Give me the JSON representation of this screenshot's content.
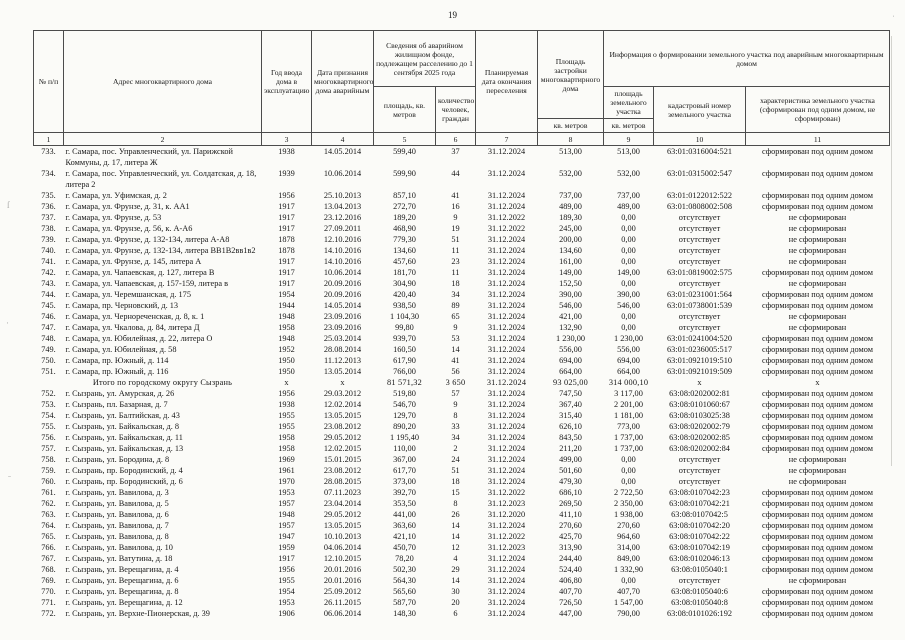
{
  "page": {
    "number": "19"
  },
  "table": {
    "headers": {
      "col1": "№ п/п",
      "col2": "Адрес многоквартирного дома",
      "col3": "Год ввода дома в эксплуатацию",
      "col4": "Дата признания многоквартирного дома аварийным",
      "col56": "Сведения об аварийном жилищном фонде, подлежащем расселению до 1 сентября 2025 года",
      "col5": "площадь, кв. метров",
      "col6": "количество человек, граждан",
      "col7": "Планируемая дата окончания переселения",
      "col8": "Площадь застройки многоквартирного дома",
      "col8sub": "кв. метров",
      "col911": "Информация о формировании земельного участка под аварийным многоквартирным домом",
      "col9": "площадь земельного участка",
      "col9sub": "кв. метров",
      "col10": "кадастровый номер земельного участка",
      "col11": "характеристика земельного участка (сформирован под одним домом, не сформирован)",
      "numbers": [
        "1",
        "2",
        "3",
        "4",
        "5",
        "6",
        "7",
        "8",
        "9",
        "10",
        "11"
      ]
    },
    "rows": [
      {
        "n": "733.",
        "address": "г. Самара, пос. Управленческий, ул. Парижской Коммуны, д. 17, литера Ж",
        "year": "1938",
        "date": "14.05.2014",
        "area": "599,40",
        "people": "37",
        "end_date": "31.12.2024",
        "footprint": "513,00",
        "land_area": "513,00",
        "cadastral": "63:01:0316004:521",
        "status": "сформирован под одним домом"
      },
      {
        "n": "734.",
        "address": "г. Самара, пос. Управленческий, ул. Солдатская, д. 18, литера 2",
        "year": "1939",
        "date": "10.06.2014",
        "area": "599,90",
        "people": "44",
        "end_date": "31.12.2024",
        "footprint": "532,00",
        "land_area": "532,00",
        "cadastral": "63:01:0315002:547",
        "status": "сформирован под одним домом"
      },
      {
        "n": "735.",
        "address": "г. Самара, ул. Уфимская, д. 2",
        "year": "1956",
        "date": "25.10.2013",
        "area": "857,10",
        "people": "41",
        "end_date": "31.12.2024",
        "footprint": "737,00",
        "land_area": "737,00",
        "cadastral": "63:01:0122012:522",
        "status": "сформирован под одним домом"
      },
      {
        "n": "736.",
        "address": "г. Самара, ул. Фрунзе, д. 31, к. АА1",
        "year": "1917",
        "date": "13.04.2013",
        "area": "272,70",
        "people": "16",
        "end_date": "31.12.2024",
        "footprint": "489,00",
        "land_area": "489,00",
        "cadastral": "63:01:0808002:508",
        "status": "сформирован под одним домом"
      },
      {
        "n": "737.",
        "address": "г. Самара, ул. Фрунзе, д. 53",
        "year": "1917",
        "date": "23.12.2016",
        "area": "189,20",
        "people": "9",
        "end_date": "31.12.2022",
        "footprint": "189,30",
        "land_area": "0,00",
        "cadastral": "отсутствует",
        "status": "не сформирован"
      },
      {
        "n": "738.",
        "address": "г. Самара, ул. Фрунзе, д. 56, к. А-А6",
        "year": "1917",
        "date": "27.09.2011",
        "area": "468,90",
        "people": "19",
        "end_date": "31.12.2022",
        "footprint": "245,00",
        "land_area": "0,00",
        "cadastral": "отсутствует",
        "status": "не сформирован"
      },
      {
        "n": "739.",
        "address": "г. Самара, ул. Фрунзе, д. 132-134, литера А-А8",
        "year": "1878",
        "date": "12.10.2016",
        "area": "779,30",
        "people": "51",
        "end_date": "31.12.2024",
        "footprint": "200,00",
        "land_area": "0,00",
        "cadastral": "отсутствует",
        "status": "не сформирован"
      },
      {
        "n": "740.",
        "address": "г. Самара, ул. Фрунзе, д. 132-134, литера ВВ1В2вв1в2",
        "year": "1878",
        "date": "14.10.2016",
        "area": "134,60",
        "people": "11",
        "end_date": "31.12.2024",
        "footprint": "134,60",
        "land_area": "0,00",
        "cadastral": "отсутствует",
        "status": "не сформирован"
      },
      {
        "n": "741.",
        "address": "г. Самара, ул. Фрунзе, д. 145, литера А",
        "year": "1917",
        "date": "14.10.2016",
        "area": "457,60",
        "people": "23",
        "end_date": "31.12.2024",
        "footprint": "161,00",
        "land_area": "0,00",
        "cadastral": "отсутствует",
        "status": "не сформирован"
      },
      {
        "n": "742.",
        "address": "г. Самара, ул. Чапаевская, д. 127, литера В",
        "year": "1917",
        "date": "10.06.2014",
        "area": "181,70",
        "people": "11",
        "end_date": "31.12.2024",
        "footprint": "149,00",
        "land_area": "149,00",
        "cadastral": "63:01:0819002:575",
        "status": "сформирован под одним домом"
      },
      {
        "n": "743.",
        "address": "г. Самара, ул. Чапаевская, д. 157-159, литера в",
        "year": "1917",
        "date": "20.09.2016",
        "area": "304,90",
        "people": "18",
        "end_date": "31.12.2024",
        "footprint": "152,50",
        "land_area": "0,00",
        "cadastral": "отсутствует",
        "status": "не сформирован"
      },
      {
        "n": "744.",
        "address": "г. Самара, ул. Черемшанская, д. 175",
        "year": "1954",
        "date": "20.09.2016",
        "area": "420,40",
        "people": "34",
        "end_date": "31.12.2024",
        "footprint": "390,00",
        "land_area": "390,00",
        "cadastral": "63:01:0231001:564",
        "status": "сформирован под одним домом"
      },
      {
        "n": "745.",
        "address": "г. Самара, пр. Черновский, д. 13",
        "year": "1944",
        "date": "14.05.2014",
        "area": "938,50",
        "people": "89",
        "end_date": "31.12.2024",
        "footprint": "546,00",
        "land_area": "546,00",
        "cadastral": "63:01:0738001:539",
        "status": "сформирован под одним домом"
      },
      {
        "n": "746.",
        "address": "г. Самара, ул. Чернореченская, д. 8, к. 1",
        "year": "1948",
        "date": "23.09.2016",
        "area": "1 104,30",
        "people": "65",
        "end_date": "31.12.2024",
        "footprint": "421,00",
        "land_area": "0,00",
        "cadastral": "отсутствует",
        "status": "не сформирован"
      },
      {
        "n": "747.",
        "address": "г. Самара, ул. Чкалова, д. 84, литера Д",
        "year": "1958",
        "date": "23.09.2016",
        "area": "99,80",
        "people": "9",
        "end_date": "31.12.2024",
        "footprint": "132,90",
        "land_area": "0,00",
        "cadastral": "отсутствует",
        "status": "не сформирован"
      },
      {
        "n": "748.",
        "address": "г. Самара, ул. Юбилейная, д. 22, литера О",
        "year": "1948",
        "date": "25.03.2014",
        "area": "939,70",
        "people": "53",
        "end_date": "31.12.2024",
        "footprint": "1 230,00",
        "land_area": "1 230,00",
        "cadastral": "63:01:0241004:520",
        "status": "сформирован под одним домом"
      },
      {
        "n": "749.",
        "address": "г. Самара, ул. Юбилейная, д. 58",
        "year": "1952",
        "date": "28.08.2014",
        "area": "160,50",
        "people": "14",
        "end_date": "31.12.2024",
        "footprint": "556,00",
        "land_area": "556,00",
        "cadastral": "63:01:0236005:517",
        "status": "сформирован под одним домом"
      },
      {
        "n": "750.",
        "address": "г. Самара, пр. Южный, д. 114",
        "year": "1950",
        "date": "11.12.2013",
        "area": "617,90",
        "people": "41",
        "end_date": "31.12.2024",
        "footprint": "694,00",
        "land_area": "694,00",
        "cadastral": "63:01:0921019:510",
        "status": "сформирован под одним домом"
      },
      {
        "n": "751.",
        "address": "г. Самара, пр. Южный, д. 116",
        "year": "1950",
        "date": "13.05.2014",
        "area": "766,00",
        "people": "56",
        "end_date": "31.12.2024",
        "footprint": "664,00",
        "land_area": "664,00",
        "cadastral": "63:01:0921019:509",
        "status": "сформирован под одним домом"
      },
      {
        "n": "",
        "is_total": true,
        "address": "Итого по городскому округу Сызрань",
        "year": "х",
        "date": "х",
        "area": "81 571,32",
        "people": "3 650",
        "end_date": "31.12.2024",
        "footprint": "93 025,00",
        "land_area": "314 000,10",
        "cadastral": "х",
        "status": "х"
      },
      {
        "n": "752.",
        "address": "г. Сызрань, ул. Амурская, д. 26",
        "year": "1956",
        "date": "29.03.2012",
        "area": "519,80",
        "people": "57",
        "end_date": "31.12.2024",
        "footprint": "747,50",
        "land_area": "3 117,00",
        "cadastral": "63:08:0202002:81",
        "status": "сформирован под одним домом"
      },
      {
        "n": "753.",
        "address": "г. Сызрань, пл. Базарная, д. 7",
        "year": "1938",
        "date": "12.02.2014",
        "area": "546,70",
        "people": "9",
        "end_date": "31.12.2024",
        "footprint": "367,40",
        "land_area": "2 201,00",
        "cadastral": "63:08:0101060:67",
        "status": "сформирован под одним домом"
      },
      {
        "n": "754.",
        "address": "г. Сызрань, ул. Балтийская, д. 43",
        "year": "1955",
        "date": "13.05.2015",
        "area": "129,70",
        "people": "8",
        "end_date": "31.12.2024",
        "footprint": "315,40",
        "land_area": "1 181,00",
        "cadastral": "63:08:0103025:38",
        "status": "сформирован под одним домом"
      },
      {
        "n": "755.",
        "address": "г. Сызрань, ул. Байкальская, д. 8",
        "year": "1955",
        "date": "23.08.2012",
        "area": "890,20",
        "people": "33",
        "end_date": "31.12.2024",
        "footprint": "626,10",
        "land_area": "773,00",
        "cadastral": "63:08:0202002:79",
        "status": "сформирован под одним домом"
      },
      {
        "n": "756.",
        "address": "г. Сызрань, ул. Байкальская, д. 11",
        "year": "1958",
        "date": "29.05.2012",
        "area": "1 195,40",
        "people": "34",
        "end_date": "31.12.2024",
        "footprint": "843,50",
        "land_area": "1 737,00",
        "cadastral": "63:08:0202002:85",
        "status": "сформирован под одним домом"
      },
      {
        "n": "757.",
        "address": "г. Сызрань, ул. Байкальская, д. 13",
        "year": "1958",
        "date": "12.02.2015",
        "area": "110,00",
        "people": "2",
        "end_date": "31.12.2024",
        "footprint": "211,20",
        "land_area": "1 737,00",
        "cadastral": "63:08:0202002:84",
        "status": "сформирован под одним домом"
      },
      {
        "n": "758.",
        "address": "г. Сызрань, ул. Бородина, д. 8",
        "year": "1969",
        "date": "15.01.2015",
        "area": "367,00",
        "people": "24",
        "end_date": "31.12.2024",
        "footprint": "499,00",
        "land_area": "0,00",
        "cadastral": "отсутствует",
        "status": "не сформирован"
      },
      {
        "n": "759.",
        "address": "г. Сызрань, пр. Бородинский, д. 4",
        "year": "1961",
        "date": "23.08.2012",
        "area": "617,70",
        "people": "51",
        "end_date": "31.12.2024",
        "footprint": "501,60",
        "land_area": "0,00",
        "cadastral": "отсутствует",
        "status": "не сформирован"
      },
      {
        "n": "760.",
        "address": "г. Сызрань, пр. Бородинский, д. 6",
        "year": "1970",
        "date": "28.08.2015",
        "area": "373,00",
        "people": "18",
        "end_date": "31.12.2024",
        "footprint": "479,30",
        "land_area": "0,00",
        "cadastral": "отсутствует",
        "status": "не сформирован"
      },
      {
        "n": "761.",
        "address": "г. Сызрань, ул. Вавилова, д. 3",
        "year": "1953",
        "date": "07.11.2023",
        "area": "392,70",
        "people": "15",
        "end_date": "31.12.2022",
        "footprint": "686,10",
        "land_area": "2 722,50",
        "cadastral": "63:08:0107042:23",
        "status": "сформирован под одним домом"
      },
      {
        "n": "762.",
        "address": "г. Сызрань, ул. Вавилова, д. 5",
        "year": "1957",
        "date": "23.04.2014",
        "area": "353,50",
        "people": "8",
        "end_date": "31.12.2023",
        "footprint": "269,50",
        "land_area": "2 350,00",
        "cadastral": "63:08:0107042:21",
        "status": "сформирован под одним домом"
      },
      {
        "n": "763.",
        "address": "г. Сызрань, ул. Вавилова, д. 6",
        "year": "1948",
        "date": "29.05.2012",
        "area": "441,00",
        "people": "26",
        "end_date": "31.12.2020",
        "footprint": "411,10",
        "land_area": "1 938,00",
        "cadastral": "63:08:0107042:5",
        "status": "сформирован под одним домом"
      },
      {
        "n": "764.",
        "address": "г. Сызрань, ул. Вавилова, д. 7",
        "year": "1957",
        "date": "13.05.2015",
        "area": "363,60",
        "people": "14",
        "end_date": "31.12.2024",
        "footprint": "270,60",
        "land_area": "270,60",
        "cadastral": "63:08:0107042:20",
        "status": "сформирован под одним домом"
      },
      {
        "n": "765.",
        "address": "г. Сызрань, ул. Вавилова, д. 8",
        "year": "1947",
        "date": "10.10.2013",
        "area": "421,10",
        "people": "14",
        "end_date": "31.12.2022",
        "footprint": "425,70",
        "land_area": "964,60",
        "cadastral": "63:08:0107042:22",
        "status": "сформирован под одним домом"
      },
      {
        "n": "766.",
        "address": "г. Сызрань, ул. Вавилова, д. 10",
        "year": "1959",
        "date": "04.06.2014",
        "area": "450,70",
        "people": "12",
        "end_date": "31.12.2023",
        "footprint": "313,90",
        "land_area": "314,00",
        "cadastral": "63:08:0107042:19",
        "status": "сформирован под одним домом"
      },
      {
        "n": "767.",
        "address": "г. Сызрань, ул. Ватутина, д. 18",
        "year": "1917",
        "date": "12.10.2015",
        "area": "78,20",
        "people": "4",
        "end_date": "31.12.2024",
        "footprint": "244,40",
        "land_area": "849,00",
        "cadastral": "63:08:0102046:13",
        "status": "сформирован под одним домом"
      },
      {
        "n": "768.",
        "address": "г. Сызрань, ул. Верещагина, д. 4",
        "year": "1956",
        "date": "20.01.2016",
        "area": "502,30",
        "people": "29",
        "end_date": "31.12.2024",
        "footprint": "524,40",
        "land_area": "1 332,90",
        "cadastral": "63:08:0105040:1",
        "status": "сформирован под одним домом"
      },
      {
        "n": "769.",
        "address": "г. Сызрань, ул. Верещагина, д. 6",
        "year": "1955",
        "date": "20.01.2016",
        "area": "564,30",
        "people": "14",
        "end_date": "31.12.2024",
        "footprint": "406,80",
        "land_area": "0,00",
        "cadastral": "отсутствует",
        "status": "не сформирован"
      },
      {
        "n": "770.",
        "address": "г. Сызрань, ул. Верещагина, д. 8",
        "year": "1954",
        "date": "25.09.2012",
        "area": "565,60",
        "people": "30",
        "end_date": "31.12.2024",
        "footprint": "407,70",
        "land_area": "407,70",
        "cadastral": "63:08:0105040:6",
        "status": "сформирован под одним домом"
      },
      {
        "n": "771.",
        "address": "г. Сызрань, ул. Верещагина, д. 12",
        "year": "1953",
        "date": "26.11.2015",
        "area": "587,70",
        "people": "20",
        "end_date": "31.12.2024",
        "footprint": "726,50",
        "land_area": "1 547,00",
        "cadastral": "63:08:0105040:8",
        "status": "сформирован под одним домом"
      },
      {
        "n": "772.",
        "address": "г. Сызрань, ул. Верхне-Пионерская, д. 39",
        "year": "1906",
        "date": "06.06.2014",
        "area": "148,30",
        "people": "6",
        "end_date": "31.12.2024",
        "footprint": "447,00",
        "land_area": "790,00",
        "cadastral": "63:08:0101026:192",
        "status": "сформирован под одним домом"
      }
    ]
  }
}
